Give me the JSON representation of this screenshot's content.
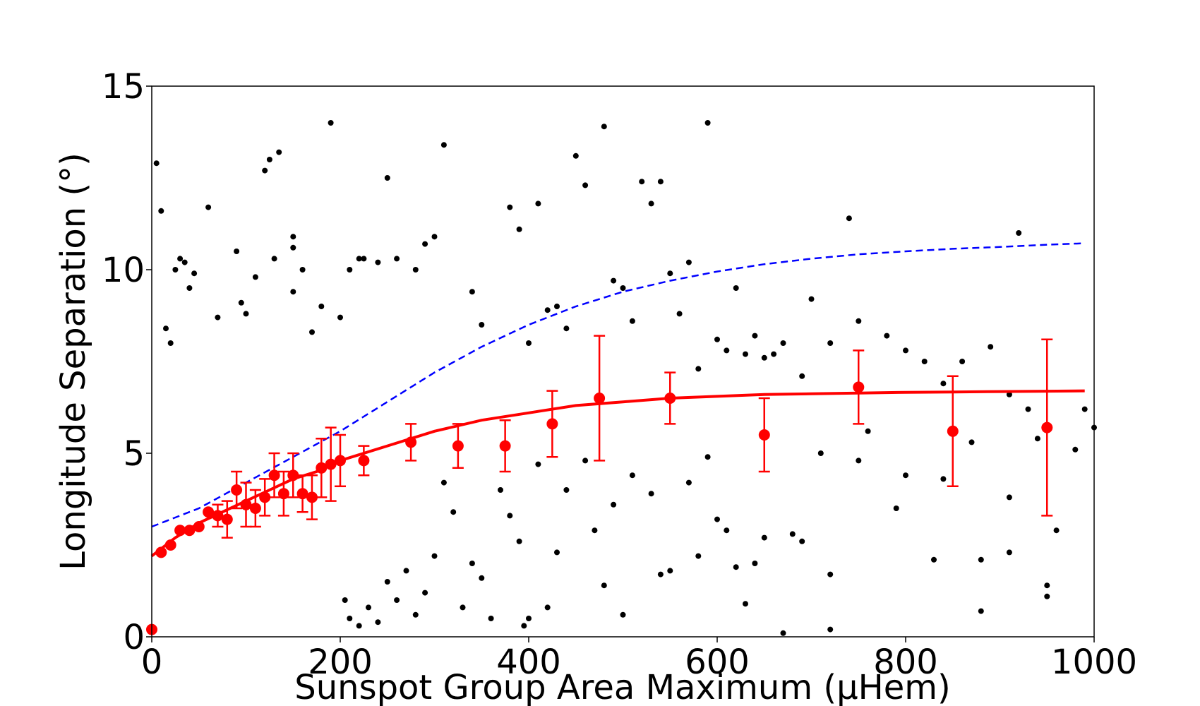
{
  "chart_data": {
    "type": "scatter",
    "xlabel": "Sunspot Group Area Maximum (μHem)",
    "ylabel": "Longitude Separation (°)",
    "xlim": [
      0,
      1000
    ],
    "ylim": [
      0,
      15
    ],
    "xticks": [
      0,
      200,
      400,
      600,
      800,
      1000
    ],
    "yticks": [
      0,
      5,
      10,
      15
    ],
    "grid": false,
    "legend": "none",
    "colors": {
      "scatter": "#000000",
      "binned": "#ff0000",
      "fit": "#ff0000",
      "upper_fit": "#0000ff"
    },
    "scatter_points": [
      [
        5,
        12.9
      ],
      [
        10,
        11.6
      ],
      [
        15,
        8.4
      ],
      [
        20,
        8.0
      ],
      [
        25,
        10.0
      ],
      [
        30,
        10.3
      ],
      [
        35,
        10.2
      ],
      [
        40,
        9.5
      ],
      [
        45,
        9.9
      ],
      [
        60,
        11.7
      ],
      [
        70,
        8.7
      ],
      [
        90,
        10.5
      ],
      [
        95,
        9.1
      ],
      [
        100,
        8.8
      ],
      [
        110,
        9.8
      ],
      [
        120,
        12.7
      ],
      [
        125,
        13.0
      ],
      [
        130,
        10.3
      ],
      [
        135,
        13.2
      ],
      [
        150,
        10.9
      ],
      [
        150,
        10.6
      ],
      [
        150,
        9.4
      ],
      [
        160,
        10.0
      ],
      [
        170,
        8.3
      ],
      [
        180,
        9.0
      ],
      [
        190,
        14.0
      ],
      [
        200,
        8.7
      ],
      [
        210,
        10.0
      ],
      [
        220,
        10.3
      ],
      [
        225,
        10.3
      ],
      [
        240,
        10.2
      ],
      [
        250,
        12.5
      ],
      [
        260,
        10.3
      ],
      [
        280,
        10.0
      ],
      [
        290,
        10.7
      ],
      [
        300,
        10.9
      ],
      [
        310,
        13.4
      ],
      [
        340,
        9.4
      ],
      [
        350,
        8.5
      ],
      [
        380,
        11.7
      ],
      [
        390,
        11.1
      ],
      [
        400,
        8.0
      ],
      [
        410,
        11.8
      ],
      [
        420,
        8.9
      ],
      [
        430,
        9.0
      ],
      [
        440,
        8.4
      ],
      [
        450,
        13.1
      ],
      [
        460,
        12.3
      ],
      [
        480,
        13.9
      ],
      [
        490,
        9.7
      ],
      [
        500,
        9.5
      ],
      [
        510,
        8.6
      ],
      [
        520,
        12.4
      ],
      [
        530,
        11.8
      ],
      [
        540,
        12.4
      ],
      [
        550,
        9.9
      ],
      [
        560,
        8.8
      ],
      [
        570,
        10.2
      ],
      [
        580,
        7.3
      ],
      [
        590,
        14.0
      ],
      [
        600,
        8.1
      ],
      [
        610,
        7.8
      ],
      [
        620,
        9.5
      ],
      [
        630,
        7.7
      ],
      [
        640,
        8.2
      ],
      [
        650,
        7.6
      ],
      [
        660,
        7.7
      ],
      [
        670,
        8.0
      ],
      [
        690,
        7.1
      ],
      [
        700,
        9.2
      ],
      [
        720,
        8.0
      ],
      [
        740,
        11.4
      ],
      [
        750,
        8.6
      ],
      [
        780,
        8.2
      ],
      [
        800,
        7.8
      ],
      [
        820,
        7.5
      ],
      [
        840,
        6.9
      ],
      [
        860,
        7.5
      ],
      [
        890,
        7.9
      ],
      [
        910,
        6.6
      ],
      [
        920,
        11.0
      ],
      [
        940,
        5.4
      ],
      [
        960,
        2.9
      ],
      [
        990,
        6.2
      ],
      [
        1000,
        5.7
      ],
      [
        980,
        5.1
      ],
      [
        950,
        1.4
      ],
      [
        950,
        1.1
      ],
      [
        930,
        6.2
      ],
      [
        910,
        2.3
      ],
      [
        910,
        3.8
      ],
      [
        880,
        2.1
      ],
      [
        880,
        0.7
      ],
      [
        870,
        5.3
      ],
      [
        840,
        4.3
      ],
      [
        830,
        2.1
      ],
      [
        800,
        4.4
      ],
      [
        790,
        3.5
      ],
      [
        760,
        5.6
      ],
      [
        750,
        4.8
      ],
      [
        720,
        1.7
      ],
      [
        720,
        0.2
      ],
      [
        710,
        5.0
      ],
      [
        690,
        2.6
      ],
      [
        680,
        2.8
      ],
      [
        670,
        0.1
      ],
      [
        650,
        2.7
      ],
      [
        640,
        2.0
      ],
      [
        630,
        0.9
      ],
      [
        620,
        1.9
      ],
      [
        610,
        2.9
      ],
      [
        600,
        3.2
      ],
      [
        590,
        4.9
      ],
      [
        580,
        2.2
      ],
      [
        570,
        4.2
      ],
      [
        550,
        1.8
      ],
      [
        540,
        1.7
      ],
      [
        530,
        3.9
      ],
      [
        510,
        4.4
      ],
      [
        500,
        0.6
      ],
      [
        490,
        3.6
      ],
      [
        480,
        1.4
      ],
      [
        470,
        2.9
      ],
      [
        460,
        4.8
      ],
      [
        440,
        4.0
      ],
      [
        430,
        2.3
      ],
      [
        420,
        0.8
      ],
      [
        410,
        4.7
      ],
      [
        400,
        0.5
      ],
      [
        395,
        0.3
      ],
      [
        390,
        2.6
      ],
      [
        380,
        3.3
      ],
      [
        370,
        4.0
      ],
      [
        360,
        0.5
      ],
      [
        350,
        1.6
      ],
      [
        340,
        2.0
      ],
      [
        330,
        0.8
      ],
      [
        320,
        3.4
      ],
      [
        310,
        4.2
      ],
      [
        300,
        2.2
      ],
      [
        290,
        1.2
      ],
      [
        280,
        0.6
      ],
      [
        270,
        1.8
      ],
      [
        260,
        1.0
      ],
      [
        250,
        1.5
      ],
      [
        240,
        0.4
      ],
      [
        230,
        0.8
      ],
      [
        220,
        0.3
      ],
      [
        210,
        0.5
      ],
      [
        205,
        1.0
      ]
    ],
    "binned_points": [
      {
        "x": 0,
        "y": 0.2,
        "err": 0.0
      },
      {
        "x": 10,
        "y": 2.3,
        "err": 0.0
      },
      {
        "x": 20,
        "y": 2.5,
        "err": 0.0
      },
      {
        "x": 30,
        "y": 2.9,
        "err": 0.0
      },
      {
        "x": 40,
        "y": 2.9,
        "err": 0.0
      },
      {
        "x": 50,
        "y": 3.0,
        "err": 0.0
      },
      {
        "x": 60,
        "y": 3.4,
        "err": 0.0
      },
      {
        "x": 70,
        "y": 3.3,
        "err": 0.3
      },
      {
        "x": 80,
        "y": 3.2,
        "err": 0.5
      },
      {
        "x": 90,
        "y": 4.0,
        "err": 0.5
      },
      {
        "x": 100,
        "y": 3.6,
        "err": 0.6
      },
      {
        "x": 110,
        "y": 3.5,
        "err": 0.5
      },
      {
        "x": 120,
        "y": 3.8,
        "err": 0.5
      },
      {
        "x": 130,
        "y": 4.4,
        "err": 0.6
      },
      {
        "x": 140,
        "y": 3.9,
        "err": 0.6
      },
      {
        "x": 150,
        "y": 4.4,
        "err": 0.6
      },
      {
        "x": 160,
        "y": 3.9,
        "err": 0.5
      },
      {
        "x": 170,
        "y": 3.8,
        "err": 0.6
      },
      {
        "x": 180,
        "y": 4.6,
        "err": 0.8
      },
      {
        "x": 190,
        "y": 4.7,
        "err": 1.0
      },
      {
        "x": 200,
        "y": 4.8,
        "err": 0.7
      },
      {
        "x": 225,
        "y": 4.8,
        "err": 0.4
      },
      {
        "x": 275,
        "y": 5.3,
        "err": 0.5
      },
      {
        "x": 325,
        "y": 5.2,
        "err": 0.6
      },
      {
        "x": 375,
        "y": 5.2,
        "err": 0.7
      },
      {
        "x": 425,
        "y": 5.8,
        "err": 0.9
      },
      {
        "x": 475,
        "y": 6.5,
        "err": 1.7
      },
      {
        "x": 550,
        "y": 6.5,
        "err": 0.7
      },
      {
        "x": 650,
        "y": 5.5,
        "err": 1.0
      },
      {
        "x": 750,
        "y": 6.8,
        "err": 1.0
      },
      {
        "x": 850,
        "y": 5.6,
        "err": 1.5
      },
      {
        "x": 950,
        "y": 5.7,
        "err": 2.4
      }
    ],
    "fit_curve": {
      "x": [
        0,
        25,
        50,
        75,
        100,
        125,
        150,
        175,
        200,
        250,
        300,
        350,
        400,
        450,
        500,
        550,
        600,
        650,
        700,
        750,
        800,
        850,
        900,
        950,
        990
      ],
      "y": [
        2.2,
        2.7,
        3.1,
        3.4,
        3.7,
        4.0,
        4.3,
        4.5,
        4.8,
        5.2,
        5.6,
        5.9,
        6.1,
        6.3,
        6.4,
        6.5,
        6.55,
        6.6,
        6.62,
        6.64,
        6.66,
        6.67,
        6.68,
        6.69,
        6.7
      ]
    },
    "upper_fit_curve": {
      "x": [
        0,
        50,
        100,
        150,
        200,
        250,
        300,
        350,
        400,
        450,
        500,
        550,
        600,
        650,
        700,
        750,
        800,
        850,
        900,
        950,
        990
      ],
      "y": [
        3.0,
        3.5,
        4.2,
        4.9,
        5.6,
        6.4,
        7.2,
        7.9,
        8.5,
        9.0,
        9.4,
        9.7,
        9.95,
        10.15,
        10.3,
        10.42,
        10.5,
        10.57,
        10.62,
        10.68,
        10.72
      ]
    }
  }
}
